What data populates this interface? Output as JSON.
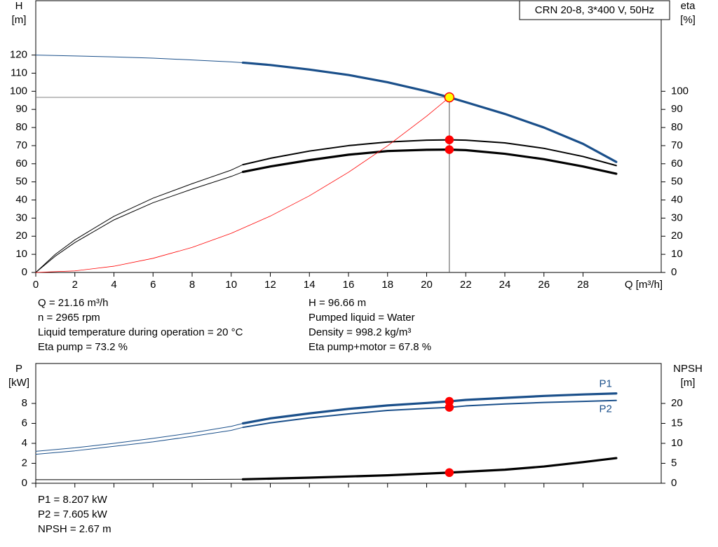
{
  "chart_data": [
    {
      "type": "line",
      "title": "CRN 20-8, 3*400 V, 50Hz",
      "xlabel": "Q [m³/h]",
      "ylabel": "H",
      "yunit": "[m]",
      "y2label": "eta",
      "y2unit": "[%]",
      "xlim": [
        0,
        32
      ],
      "xticks": [
        0,
        2,
        4,
        6,
        8,
        10,
        12,
        14,
        16,
        18,
        20,
        22,
        24,
        26,
        28
      ],
      "ylim": [
        0,
        150
      ],
      "yticks": [
        0,
        10,
        20,
        30,
        40,
        50,
        60,
        70,
        80,
        90,
        100,
        110,
        120
      ],
      "y2lim": [
        0,
        150
      ],
      "y2ticks": [
        0,
        10,
        20,
        30,
        40,
        50,
        60,
        70,
        80,
        90,
        100
      ],
      "grid": false,
      "crosshair": true,
      "series": [
        {
          "color": "#1a4f8a",
          "weight": "thin",
          "x": [
            0,
            2,
            4,
            6,
            8,
            10,
            10.6
          ],
          "values": [
            120,
            119.5,
            119,
            118.3,
            117.3,
            116.2,
            115.8
          ]
        },
        {
          "color": "#1a4f8a",
          "weight": "bold",
          "x": [
            10.6,
            12,
            14,
            16,
            18,
            20,
            21.16,
            22,
            24,
            26,
            28,
            29.7
          ],
          "values": [
            115.8,
            114.5,
            112,
            109,
            105,
            100,
            96.66,
            94,
            87.5,
            80,
            71,
            61
          ]
        },
        {
          "color": "#000000",
          "weight": "thin",
          "axis": "y2",
          "x": [
            0,
            1,
            2,
            4,
            6,
            8,
            10,
            10.6
          ],
          "values": [
            0,
            10,
            18,
            31,
            41,
            49,
            56.5,
            59.5
          ]
        },
        {
          "color": "#000000",
          "weight": "medium",
          "axis": "y2",
          "x": [
            10.6,
            12,
            14,
            16,
            18,
            20,
            21.16,
            22,
            24,
            26,
            28,
            29.7
          ],
          "values": [
            59.5,
            63,
            67,
            70,
            72,
            73,
            73.2,
            73,
            71.5,
            68.5,
            64,
            59
          ]
        },
        {
          "color": "#000000",
          "weight": "thin",
          "axis": "y2",
          "x": [
            0,
            1,
            2,
            4,
            6,
            8,
            10,
            10.6
          ],
          "values": [
            0,
            9,
            16.5,
            29,
            38.5,
            46,
            53,
            55.5
          ]
        },
        {
          "color": "#000000",
          "weight": "bold",
          "axis": "y2",
          "x": [
            10.6,
            12,
            14,
            16,
            18,
            20,
            21.16,
            22,
            24,
            26,
            28,
            29.7
          ],
          "values": [
            55.5,
            58.5,
            62,
            65,
            67,
            67.7,
            67.8,
            67.5,
            65.5,
            62.5,
            58.5,
            54.5
          ]
        },
        {
          "color": "#ff0000",
          "weight": "hair",
          "x": [
            0,
            2,
            4,
            6,
            8,
            10,
            12,
            14,
            16,
            18,
            20,
            21.16
          ],
          "values": [
            0,
            0.86,
            3.45,
            7.8,
            13.8,
            21.6,
            31.1,
            42.3,
            55.3,
            69.9,
            86.3,
            96.66
          ]
        }
      ],
      "operating_point": {
        "x": 21.16,
        "points": [
          {
            "value": 96.66,
            "axis": "y",
            "fill": "#ffff00"
          },
          {
            "value": 73.2,
            "axis": "y2",
            "fill": "#ff0000"
          },
          {
            "value": 67.8,
            "axis": "y2",
            "fill": "#ff0000"
          }
        ]
      },
      "notes": [
        "Q = 21.16 m³/h",
        "n = 2965 rpm",
        "Liquid temperature during operation = 20 °C",
        "Eta pump = 73.2 %",
        "H = 96.66 m",
        "Pumped liquid = Water",
        "Density = 998.2 kg/m³",
        "Eta pump+motor = 67.8 %"
      ]
    },
    {
      "type": "line",
      "ylabel": "P",
      "yunit": "[kW]",
      "y2label": "NPSH",
      "y2unit": "[m]",
      "xlim": [
        0,
        32
      ],
      "xticks": [
        0,
        2,
        4,
        6,
        8,
        10,
        12,
        14,
        16,
        18,
        20,
        22,
        24,
        26,
        28
      ],
      "ylim": [
        0,
        12
      ],
      "yticks": [
        0,
        2,
        4,
        6,
        8
      ],
      "y2lim": [
        0,
        30
      ],
      "y2ticks": [
        0,
        5,
        10,
        15,
        20
      ],
      "grid": false,
      "series": [
        {
          "color": "#1a4f8a",
          "weight": "thin",
          "x": [
            0,
            2,
            4,
            6,
            8,
            10,
            10.6
          ],
          "values": [
            3.2,
            3.55,
            4,
            4.5,
            5.05,
            5.7,
            6.0
          ]
        },
        {
          "name": "P1",
          "color": "#1a4f8a",
          "weight": "bold",
          "x": [
            10.6,
            12,
            14,
            16,
            18,
            20,
            21.16,
            22,
            24,
            26,
            28,
            29.7
          ],
          "values": [
            6.0,
            6.5,
            7.0,
            7.45,
            7.8,
            8.05,
            8.207,
            8.35,
            8.55,
            8.75,
            8.9,
            9.0
          ]
        },
        {
          "color": "#1a4f8a",
          "weight": "thin",
          "x": [
            0,
            2,
            4,
            6,
            8,
            10,
            10.6
          ],
          "values": [
            2.9,
            3.25,
            3.7,
            4.15,
            4.7,
            5.3,
            5.6
          ]
        },
        {
          "name": "P2",
          "color": "#1a4f8a",
          "weight": "medium",
          "x": [
            10.6,
            12,
            14,
            16,
            18,
            20,
            21.16,
            22,
            24,
            26,
            28,
            29.7
          ],
          "values": [
            5.6,
            6.05,
            6.55,
            6.95,
            7.3,
            7.5,
            7.605,
            7.75,
            7.95,
            8.1,
            8.2,
            8.3
          ]
        },
        {
          "color": "#000000",
          "weight": "thin",
          "axis": "y2",
          "x": [
            0,
            4,
            8,
            10.6
          ],
          "values": [
            0.9,
            0.9,
            0.95,
            1.0
          ]
        },
        {
          "color": "#000000",
          "weight": "bold",
          "axis": "y2",
          "x": [
            10.6,
            14,
            18,
            21.16,
            24,
            26,
            28,
            29.7
          ],
          "values": [
            1.0,
            1.4,
            2.0,
            2.67,
            3.4,
            4.2,
            5.3,
            6.3
          ]
        }
      ],
      "operating_point": {
        "x": 21.16,
        "points": [
          {
            "value": 8.207,
            "axis": "y",
            "fill": "#ff0000"
          },
          {
            "value": 7.605,
            "axis": "y",
            "fill": "#ff0000"
          },
          {
            "value": 2.67,
            "axis": "y2",
            "fill": "#ff0000"
          }
        ]
      },
      "notes": [
        "P1 = 8.207 kW",
        "P2 = 7.605 kW",
        "NPSH = 2.67 m"
      ]
    }
  ]
}
